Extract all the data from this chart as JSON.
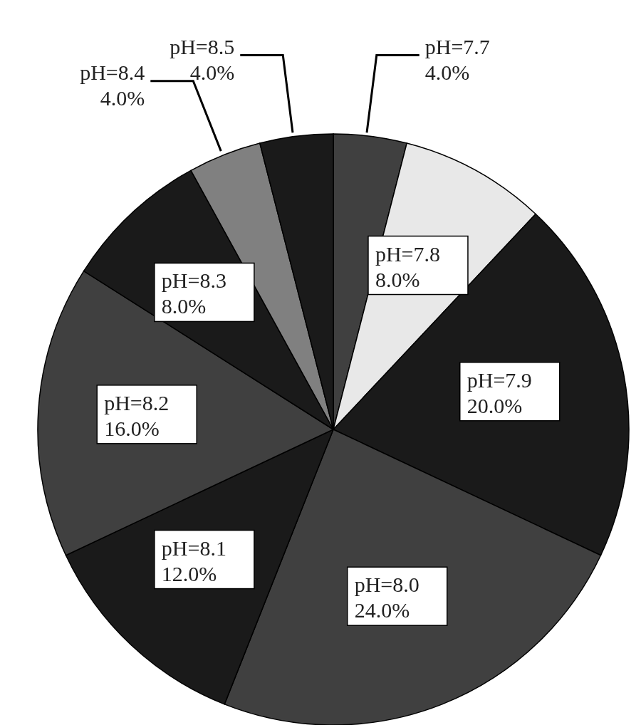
{
  "chart_data": {
    "type": "pie",
    "categories": [
      "pH=7.7",
      "pH=7.8",
      "pH=7.9",
      "pH=8.0",
      "pH=8.1",
      "pH=8.2",
      "pH=8.3",
      "pH=8.4",
      "pH=8.5"
    ],
    "values": [
      4,
      8,
      20,
      24,
      12,
      16,
      8,
      4,
      4
    ],
    "value_labels": [
      "4.0%",
      "8.0%",
      "20.0%",
      "24.0%",
      "12.0%",
      "16.0%",
      "8.0%",
      "4.0%",
      "4.0%"
    ],
    "colors": [
      "#404040",
      "#e8e8e8",
      "#1a1a1a",
      "#404040",
      "#1a1a1a",
      "#404040",
      "#1a1a1a",
      "#808080",
      "#1a1a1a"
    ],
    "legend": false
  }
}
